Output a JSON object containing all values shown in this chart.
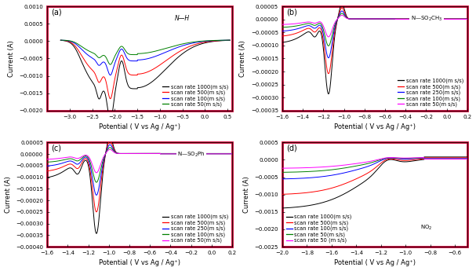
{
  "panels": [
    "(a)",
    "(b)",
    "(c)",
    "(d)"
  ],
  "border_color": "#cc0033",
  "background_color": "white",
  "tick_fontsize": 5.0,
  "label_fontsize": 6.0,
  "legend_fontsize": 4.8,
  "panel_label_fontsize": 7,
  "panel_a": {
    "xlabel": "Potential ( V vs Ag / Ag⁺)",
    "ylabel": "Current (A)",
    "xlim": [
      -3.5,
      0.6
    ],
    "ylim": [
      -0.002,
      0.001
    ],
    "yticks": [
      -0.002,
      -0.0015,
      -0.001,
      -0.0005,
      0.0,
      0.0005,
      0.001
    ],
    "xticks": [
      -3.0,
      -2.5,
      -2.0,
      -1.5,
      -1.0,
      -0.5,
      0.0,
      0.5
    ],
    "colors": [
      "black",
      "red",
      "blue",
      "green"
    ],
    "legend_labels": [
      "scan rate 1000(m s/s)",
      "scan rate 500(m s/s)",
      "scan rate 100(m s/s)",
      "scan rate 50(m s/s)"
    ],
    "legend_loc": "lower right"
  },
  "panel_b": {
    "xlabel": "Potential ( V vs Ag / Ag⁺)",
    "ylabel": "Current (A)",
    "xlim": [
      -1.6,
      0.2
    ],
    "ylim": [
      -0.00035,
      5e-05
    ],
    "yticks": [
      -0.00035,
      -0.0003,
      -0.00025,
      -0.0002,
      -0.00015,
      -0.0001,
      -5e-05,
      0.0,
      5e-05
    ],
    "xticks": [
      -1.6,
      -1.4,
      -1.2,
      -1.0,
      -0.8,
      -0.6,
      -0.4,
      -0.2,
      0.0,
      0.2
    ],
    "colors": [
      "black",
      "red",
      "blue",
      "green",
      "magenta"
    ],
    "legend_labels": [
      "scan rate 1000(m s/s)",
      "scan rate 500(m s/s)",
      "scan rate 250(m s/s)",
      "scan rate 100(m s/s)",
      "scan rate 50(m s/s)"
    ],
    "legend_loc": "lower right"
  },
  "panel_c": {
    "xlabel": "Potential ( V vs Ag / Ag⁺)",
    "ylabel": "Current (A)",
    "xlim": [
      -1.6,
      0.2
    ],
    "ylim": [
      -0.0004,
      5e-05
    ],
    "yticks": [
      -0.0004,
      -0.00035,
      -0.0003,
      -0.00025,
      -0.0002,
      -0.00015,
      -0.0001,
      -5e-05,
      0.0,
      5e-05
    ],
    "xticks": [
      -1.6,
      -1.4,
      -1.2,
      -1.0,
      -0.8,
      -0.6,
      -0.4,
      -0.2,
      0.0,
      0.2
    ],
    "colors": [
      "black",
      "red",
      "blue",
      "green",
      "magenta"
    ],
    "legend_labels": [
      "scan rate 1000(m s/s)",
      "scan rate 500(m s/s)",
      "scan rate 250(m s/s)",
      "scan rate 100(m s/s)",
      "scan rate 50(m s/s)"
    ],
    "legend_loc": "lower right"
  },
  "panel_d": {
    "xlabel": "Potential ( V vs Ag / Ag⁺)",
    "ylabel": "Current (A)",
    "xlim": [
      -2.0,
      -0.5
    ],
    "ylim": [
      -0.0025,
      0.0005
    ],
    "yticks": [
      -0.0025,
      -0.002,
      -0.0015,
      -0.001,
      -0.0005,
      0.0,
      0.0005
    ],
    "xticks": [
      -2.0,
      -1.8,
      -1.6,
      -1.4,
      -1.2,
      -1.0,
      -0.8,
      -0.6
    ],
    "colors": [
      "black",
      "red",
      "blue",
      "green",
      "magenta"
    ],
    "legend_labels": [
      "scan rate 1000(m s/s)",
      "scan rate 500(m s/s)",
      "scan rate 100(m s/s)",
      "scan rate 50(m s/s)",
      "scan rate 50 (m s/s)"
    ],
    "legend_loc": "lower left"
  }
}
